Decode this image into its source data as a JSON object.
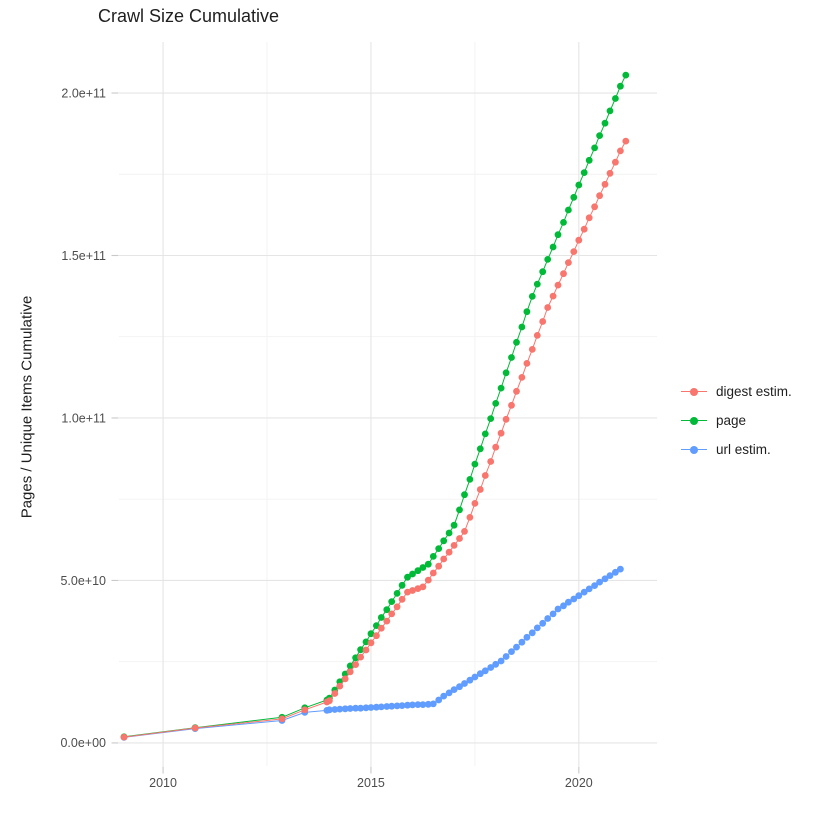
{
  "title": "Crawl Size Cumulative",
  "colors": {
    "digest": "#F8766D",
    "page": "#00BA38",
    "url": "#619CFF",
    "grid_major": "#E5E5E5",
    "grid_minor": "#F2F2F2",
    "axis_tick": "#C9C9C9",
    "tick_text": "#4D4D4D",
    "text": "#1F1F1F",
    "background": "#FFFFFF"
  },
  "legend": {
    "items": [
      {
        "label": "digest estim.",
        "color": "#F8766D"
      },
      {
        "label": "page",
        "color": "#00BA38"
      },
      {
        "label": "url estim.",
        "color": "#619CFF"
      }
    ]
  },
  "chart_data": {
    "type": "scatter",
    "connected": true,
    "title": "Crawl Size Cumulative",
    "xlabel": "",
    "ylabel": "Pages / Unique Items Cumulative",
    "value_unit": "pages, values in billions (1e9)",
    "grid": true,
    "legend_position": "right",
    "xlim": [
      2008.94,
      2021.88
    ],
    "ylim_e9": [
      -7.1,
      215.7
    ],
    "x_ticks": [
      {
        "value": 2010,
        "label": "2010"
      },
      {
        "value": 2015,
        "label": "2015"
      },
      {
        "value": 2020,
        "label": "2020"
      }
    ],
    "y_ticks": [
      {
        "value_e9": 0,
        "label": "0.0e+00"
      },
      {
        "value_e9": 50,
        "label": "5.0e+10"
      },
      {
        "value_e9": 100,
        "label": "1.0e+11"
      },
      {
        "value_e9": 150,
        "label": "1.5e+11"
      },
      {
        "value_e9": 200,
        "label": "2.0e+11"
      }
    ],
    "x_minor_gridlines": [
      2012.5,
      2017.5
    ],
    "y_minor_gridlines_e9": [
      25,
      75,
      125,
      175
    ],
    "series": [
      {
        "name": "digest estim.",
        "color": "#F8766D",
        "points_year_value_e9": [
          [
            2009.06,
            1.8
          ],
          [
            2010.77,
            4.6
          ],
          [
            2012.86,
            7.4
          ],
          [
            2013.41,
            10.2
          ],
          [
            2013.94,
            12.6
          ],
          [
            2014.0,
            13.0
          ],
          [
            2014.13,
            15.2
          ],
          [
            2014.25,
            17.5
          ],
          [
            2014.38,
            19.7
          ],
          [
            2014.5,
            21.9
          ],
          [
            2014.63,
            24.1
          ],
          [
            2014.75,
            26.4
          ],
          [
            2014.88,
            28.6
          ],
          [
            2015.0,
            30.8
          ],
          [
            2015.13,
            33.0
          ],
          [
            2015.25,
            35.3
          ],
          [
            2015.38,
            37.5
          ],
          [
            2015.5,
            39.7
          ],
          [
            2015.63,
            41.9
          ],
          [
            2015.75,
            44.2
          ],
          [
            2015.88,
            46.4
          ],
          [
            2016.0,
            46.9
          ],
          [
            2016.13,
            47.5
          ],
          [
            2016.25,
            48.0
          ],
          [
            2016.38,
            50.1
          ],
          [
            2016.5,
            52.3
          ],
          [
            2016.63,
            54.4
          ],
          [
            2016.75,
            56.6
          ],
          [
            2016.88,
            58.7
          ],
          [
            2017.0,
            60.8
          ],
          [
            2017.13,
            62.9
          ],
          [
            2017.25,
            65.1
          ],
          [
            2017.38,
            69.4
          ],
          [
            2017.5,
            73.7
          ],
          [
            2017.63,
            78.0
          ],
          [
            2017.75,
            82.3
          ],
          [
            2017.88,
            86.6
          ],
          [
            2018.0,
            91.0
          ],
          [
            2018.13,
            95.3
          ],
          [
            2018.25,
            99.6
          ],
          [
            2018.38,
            103.9
          ],
          [
            2018.5,
            108.2
          ],
          [
            2018.63,
            112.5
          ],
          [
            2018.75,
            116.8
          ],
          [
            2018.88,
            121.1
          ],
          [
            2019.0,
            125.4
          ],
          [
            2019.13,
            129.7
          ],
          [
            2019.25,
            134.0
          ],
          [
            2019.38,
            137.5
          ],
          [
            2019.5,
            140.9
          ],
          [
            2019.63,
            144.4
          ],
          [
            2019.75,
            147.8
          ],
          [
            2019.88,
            151.2
          ],
          [
            2020.0,
            154.7
          ],
          [
            2020.13,
            158.1
          ],
          [
            2020.25,
            161.6
          ],
          [
            2020.38,
            165.0
          ],
          [
            2020.5,
            168.4
          ],
          [
            2020.63,
            171.9
          ],
          [
            2020.75,
            175.3
          ],
          [
            2020.88,
            178.7
          ],
          [
            2021.0,
            182.2
          ],
          [
            2021.13,
            185.2
          ]
        ]
      },
      {
        "name": "page",
        "color": "#00BA38",
        "points_year_value_e9": [
          [
            2009.06,
            1.9
          ],
          [
            2010.77,
            4.7
          ],
          [
            2012.86,
            7.9
          ],
          [
            2013.41,
            10.8
          ],
          [
            2013.94,
            13.2
          ],
          [
            2014.0,
            13.8
          ],
          [
            2014.13,
            16.3
          ],
          [
            2014.25,
            18.8
          ],
          [
            2014.38,
            21.2
          ],
          [
            2014.5,
            23.7
          ],
          [
            2014.63,
            26.2
          ],
          [
            2014.75,
            28.7
          ],
          [
            2014.88,
            31.1
          ],
          [
            2015.0,
            33.6
          ],
          [
            2015.13,
            36.1
          ],
          [
            2015.25,
            38.6
          ],
          [
            2015.38,
            41.0
          ],
          [
            2015.5,
            43.5
          ],
          [
            2015.63,
            46.0
          ],
          [
            2015.75,
            48.5
          ],
          [
            2015.88,
            51.0
          ],
          [
            2016.0,
            52.0
          ],
          [
            2016.13,
            53.0
          ],
          [
            2016.25,
            54.0
          ],
          [
            2016.38,
            55.0
          ],
          [
            2016.5,
            57.4
          ],
          [
            2016.63,
            59.8
          ],
          [
            2016.75,
            62.2
          ],
          [
            2016.88,
            64.6
          ],
          [
            2017.0,
            67.0
          ],
          [
            2017.13,
            71.7
          ],
          [
            2017.25,
            76.4
          ],
          [
            2017.38,
            81.1
          ],
          [
            2017.5,
            85.8
          ],
          [
            2017.63,
            90.5
          ],
          [
            2017.75,
            95.1
          ],
          [
            2017.88,
            99.8
          ],
          [
            2018.0,
            104.5
          ],
          [
            2018.13,
            109.2
          ],
          [
            2018.25,
            113.9
          ],
          [
            2018.38,
            118.6
          ],
          [
            2018.5,
            123.3
          ],
          [
            2018.63,
            128.0
          ],
          [
            2018.75,
            132.7
          ],
          [
            2018.88,
            137.4
          ],
          [
            2019.0,
            141.2
          ],
          [
            2019.13,
            145.0
          ],
          [
            2019.25,
            148.8
          ],
          [
            2019.38,
            152.6
          ],
          [
            2019.5,
            156.4
          ],
          [
            2019.63,
            160.2
          ],
          [
            2019.75,
            164.0
          ],
          [
            2019.88,
            167.9
          ],
          [
            2020.0,
            171.7
          ],
          [
            2020.13,
            175.5
          ],
          [
            2020.25,
            179.3
          ],
          [
            2020.38,
            183.1
          ],
          [
            2020.5,
            186.9
          ],
          [
            2020.63,
            190.7
          ],
          [
            2020.75,
            194.5
          ],
          [
            2020.88,
            198.3
          ],
          [
            2021.0,
            202.1
          ],
          [
            2021.13,
            205.5
          ]
        ]
      },
      {
        "name": "url estim.",
        "color": "#619CFF",
        "points_year_value_e9": [
          [
            2009.06,
            1.7
          ],
          [
            2010.77,
            4.4
          ],
          [
            2012.86,
            6.9
          ],
          [
            2013.41,
            9.4
          ],
          [
            2013.94,
            10.0
          ],
          [
            2014.0,
            10.2
          ],
          [
            2014.13,
            10.3
          ],
          [
            2014.25,
            10.4
          ],
          [
            2014.38,
            10.5
          ],
          [
            2014.5,
            10.6
          ],
          [
            2014.63,
            10.7
          ],
          [
            2014.75,
            10.7
          ],
          [
            2014.88,
            10.8
          ],
          [
            2015.0,
            10.9
          ],
          [
            2015.13,
            11.0
          ],
          [
            2015.25,
            11.1
          ],
          [
            2015.38,
            11.2
          ],
          [
            2015.5,
            11.3
          ],
          [
            2015.63,
            11.4
          ],
          [
            2015.75,
            11.5
          ],
          [
            2015.88,
            11.6
          ],
          [
            2016.0,
            11.7
          ],
          [
            2016.13,
            11.8
          ],
          [
            2016.25,
            11.8
          ],
          [
            2016.38,
            11.9
          ],
          [
            2016.5,
            12.0
          ],
          [
            2016.63,
            13.2
          ],
          [
            2016.75,
            14.4
          ],
          [
            2016.88,
            15.4
          ],
          [
            2017.0,
            16.4
          ],
          [
            2017.13,
            17.3
          ],
          [
            2017.25,
            18.3
          ],
          [
            2017.38,
            19.3
          ],
          [
            2017.5,
            20.3
          ],
          [
            2017.63,
            21.3
          ],
          [
            2017.75,
            22.2
          ],
          [
            2017.88,
            23.2
          ],
          [
            2018.0,
            24.2
          ],
          [
            2018.13,
            25.2
          ],
          [
            2018.25,
            26.6
          ],
          [
            2018.38,
            28.1
          ],
          [
            2018.5,
            29.5
          ],
          [
            2018.63,
            31.0
          ],
          [
            2018.75,
            32.5
          ],
          [
            2018.88,
            33.9
          ],
          [
            2019.0,
            35.4
          ],
          [
            2019.13,
            36.8
          ],
          [
            2019.25,
            38.3
          ],
          [
            2019.38,
            39.7
          ],
          [
            2019.5,
            41.2
          ],
          [
            2019.63,
            42.2
          ],
          [
            2019.75,
            43.3
          ],
          [
            2019.88,
            44.3
          ],
          [
            2020.0,
            45.3
          ],
          [
            2020.13,
            46.4
          ],
          [
            2020.25,
            47.4
          ],
          [
            2020.38,
            48.4
          ],
          [
            2020.5,
            49.5
          ],
          [
            2020.63,
            50.5
          ],
          [
            2020.75,
            51.5
          ],
          [
            2020.88,
            52.5
          ],
          [
            2021.0,
            53.5
          ]
        ]
      }
    ]
  }
}
